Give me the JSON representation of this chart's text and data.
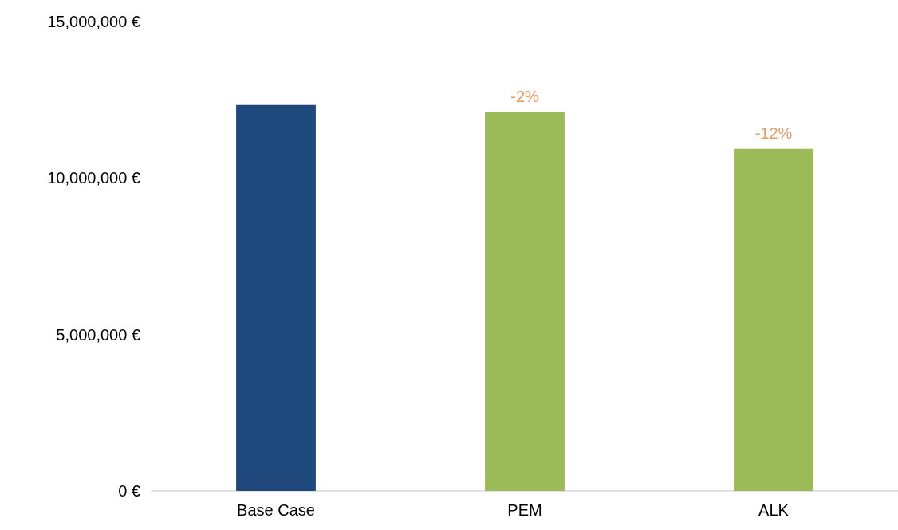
{
  "chart_data": {
    "type": "bar",
    "categories": [
      "Base Case",
      "PEM",
      "ALK"
    ],
    "values": [
      12330000,
      12100000,
      10930000
    ],
    "colors": [
      "#1f497d",
      "#9bbb59",
      "#9bbb59"
    ],
    "annotations": [
      {
        "text": "-2%",
        "x": "PEM",
        "y": 12100000
      },
      {
        "text": "-12%",
        "x": "ALK",
        "y": 10930000
      }
    ],
    "ylim": [
      0,
      15000000
    ],
    "yticks": [
      {
        "value": 0,
        "label": "0 €"
      },
      {
        "value": 5000000,
        "label": "5,000,000 €"
      },
      {
        "value": 10000000,
        "label": "10,000,000 €"
      },
      {
        "value": 15000000,
        "label": "15,000,000 €"
      }
    ],
    "grid": false
  }
}
